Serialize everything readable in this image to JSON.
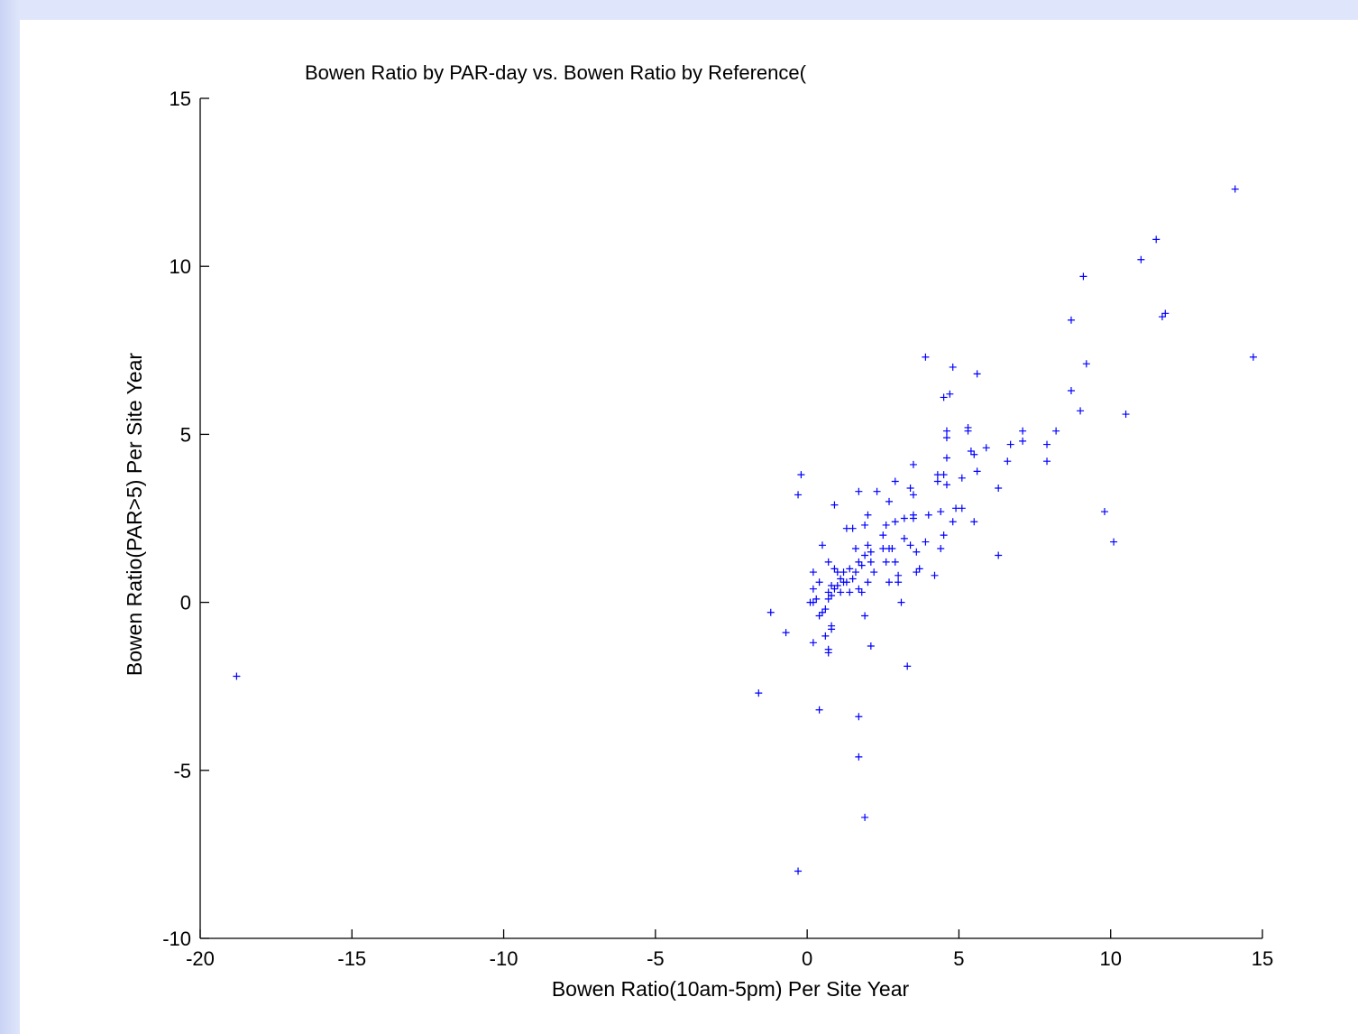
{
  "colors": {
    "frame_background": "#d2dcf9",
    "figure_background": "#ffffff",
    "axis_color": "#000000",
    "marker_color": "#0000ff"
  },
  "chart_data": {
    "type": "scatter",
    "title": "Bowen Ratio by PAR-day vs. Bowen Ratio by Reference(",
    "xlabel": "Bowen Ratio(10am-5pm) Per Site Year",
    "ylabel": "Bowen Ratio(PAR>5) Per Site Year",
    "xlim": [
      -20,
      15
    ],
    "ylim": [
      -10,
      15
    ],
    "xticks": [
      -20,
      -15,
      -10,
      -5,
      0,
      5,
      10,
      15
    ],
    "yticks": [
      -10,
      -5,
      0,
      5,
      10,
      15
    ],
    "xtick_labels": [
      "-20",
      "-15",
      "-10",
      "-5",
      "0",
      "5",
      "10",
      "15"
    ],
    "ytick_labels": [
      "-10",
      "-5",
      "0",
      "5",
      "10",
      "15"
    ],
    "grid": false,
    "legend": null,
    "marker": "+",
    "points": [
      [
        -18.8,
        -2.2
      ],
      [
        14.1,
        12.3
      ],
      [
        11.5,
        10.8
      ],
      [
        11.0,
        10.2
      ],
      [
        9.1,
        9.7
      ],
      [
        8.7,
        8.4
      ],
      [
        11.7,
        8.5
      ],
      [
        11.8,
        8.6
      ],
      [
        14.7,
        7.3
      ],
      [
        9.2,
        7.1
      ],
      [
        8.7,
        6.3
      ],
      [
        9.0,
        5.7
      ],
      [
        10.5,
        5.6
      ],
      [
        7.1,
        5.1
      ],
      [
        7.1,
        4.8
      ],
      [
        7.9,
        4.7
      ],
      [
        8.2,
        5.1
      ],
      [
        7.9,
        4.2
      ],
      [
        9.8,
        2.7
      ],
      [
        10.1,
        1.8
      ],
      [
        6.6,
        4.2
      ],
      [
        6.7,
        4.7
      ],
      [
        6.3,
        3.4
      ],
      [
        6.3,
        1.4
      ],
      [
        5.9,
        4.6
      ],
      [
        5.5,
        4.4
      ],
      [
        5.4,
        4.5
      ],
      [
        5.3,
        5.2
      ],
      [
        5.3,
        5.1
      ],
      [
        5.6,
        3.9
      ],
      [
        5.5,
        2.4
      ],
      [
        5.1,
        3.7
      ],
      [
        5.1,
        2.8
      ],
      [
        4.9,
        2.8
      ],
      [
        4.8,
        2.4
      ],
      [
        4.7,
        6.2
      ],
      [
        4.5,
        6.1
      ],
      [
        4.6,
        5.1
      ],
      [
        4.6,
        4.9
      ],
      [
        4.6,
        4.3
      ],
      [
        4.6,
        3.5
      ],
      [
        4.5,
        3.8
      ],
      [
        4.3,
        3.8
      ],
      [
        4.3,
        3.6
      ],
      [
        4.4,
        2.7
      ],
      [
        4.5,
        2.0
      ],
      [
        4.4,
        1.6
      ],
      [
        4.2,
        0.8
      ],
      [
        4.0,
        2.6
      ],
      [
        3.9,
        1.8
      ],
      [
        3.9,
        7.3
      ],
      [
        4.8,
        7.0
      ],
      [
        5.6,
        6.8
      ],
      [
        3.5,
        4.1
      ],
      [
        3.4,
        3.4
      ],
      [
        3.5,
        3.2
      ],
      [
        3.5,
        2.6
      ],
      [
        3.5,
        2.5
      ],
      [
        3.6,
        1.5
      ],
      [
        3.4,
        1.7
      ],
      [
        3.2,
        1.9
      ],
      [
        3.7,
        1.0
      ],
      [
        3.6,
        0.9
      ],
      [
        3.2,
        2.5
      ],
      [
        2.9,
        3.6
      ],
      [
        2.7,
        3.0
      ],
      [
        2.9,
        2.4
      ],
      [
        2.6,
        2.3
      ],
      [
        2.5,
        2.0
      ],
      [
        2.7,
        1.6
      ],
      [
        2.5,
        1.6
      ],
      [
        2.8,
        1.6
      ],
      [
        2.6,
        1.2
      ],
      [
        2.9,
        1.2
      ],
      [
        3.0,
        0.8
      ],
      [
        2.7,
        0.6
      ],
      [
        3.0,
        0.6
      ],
      [
        3.1,
        0.0
      ],
      [
        2.3,
        3.3
      ],
      [
        2.0,
        2.6
      ],
      [
        1.9,
        2.3
      ],
      [
        2.0,
        1.7
      ],
      [
        2.1,
        1.5
      ],
      [
        1.9,
        1.4
      ],
      [
        2.1,
        1.2
      ],
      [
        1.8,
        1.1
      ],
      [
        2.2,
        0.9
      ],
      [
        2.0,
        0.6
      ],
      [
        1.7,
        0.4
      ],
      [
        1.8,
        0.3
      ],
      [
        1.7,
        3.3
      ],
      [
        1.5,
        2.2
      ],
      [
        1.3,
        2.2
      ],
      [
        1.6,
        1.6
      ],
      [
        1.7,
        1.2
      ],
      [
        1.6,
        0.9
      ],
      [
        1.5,
        0.7
      ],
      [
        1.4,
        1.0
      ],
      [
        1.3,
        0.6
      ],
      [
        1.4,
        0.3
      ],
      [
        1.2,
        0.9
      ],
      [
        1.2,
        0.6
      ],
      [
        1.0,
        0.5
      ],
      [
        1.1,
        0.3
      ],
      [
        1.1,
        0.7
      ],
      [
        1.0,
        0.9
      ],
      [
        0.9,
        2.9
      ],
      [
        0.7,
        1.2
      ],
      [
        0.9,
        1.0
      ],
      [
        0.8,
        0.5
      ],
      [
        0.9,
        0.4
      ],
      [
        0.7,
        0.3
      ],
      [
        0.8,
        0.2
      ],
      [
        0.7,
        0.1
      ],
      [
        0.6,
        -0.2
      ],
      [
        0.5,
        -0.3
      ],
      [
        0.4,
        -0.4
      ],
      [
        0.5,
        1.7
      ],
      [
        0.4,
        0.6
      ],
      [
        0.2,
        0.4
      ],
      [
        0.3,
        0.1
      ],
      [
        0.2,
        0.0
      ],
      [
        0.1,
        0.0
      ],
      [
        0.2,
        0.9
      ],
      [
        0.8,
        -0.7
      ],
      [
        0.8,
        -0.8
      ],
      [
        0.6,
        -1.0
      ],
      [
        0.7,
        -1.4
      ],
      [
        0.7,
        -1.5
      ],
      [
        0.2,
        -1.2
      ],
      [
        -0.2,
        3.8
      ],
      [
        -0.3,
        3.2
      ],
      [
        -0.7,
        -0.9
      ],
      [
        -1.2,
        -0.3
      ],
      [
        -1.6,
        -2.7
      ],
      [
        0.4,
        -3.2
      ],
      [
        1.7,
        -3.4
      ],
      [
        1.9,
        -0.4
      ],
      [
        2.1,
        -1.3
      ],
      [
        3.3,
        -1.9
      ],
      [
        1.7,
        -4.6
      ],
      [
        1.9,
        -6.4
      ],
      [
        -0.3,
        -8.0
      ]
    ]
  }
}
